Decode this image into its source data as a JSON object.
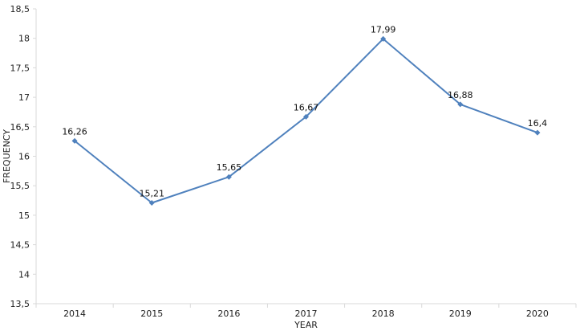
{
  "chart_data": {
    "type": "line",
    "title": "",
    "xlabel": "YEAR",
    "ylabel": "FREQUENCY",
    "categories": [
      "2014",
      "2015",
      "2016",
      "2017",
      "2018",
      "2019",
      "2020"
    ],
    "series": [
      {
        "values": [
          16.26,
          15.21,
          15.65,
          16.67,
          17.99,
          16.88,
          16.4
        ],
        "color": "#4f81bd"
      }
    ],
    "data_labels": [
      "16,26",
      "15,21",
      "15,65",
      "16,67",
      "17,99",
      "16,88",
      "16,4"
    ],
    "ylim": [
      13.5,
      18.5
    ],
    "y_ticks": [
      13.5,
      14,
      14.5,
      15,
      15.5,
      16,
      16.5,
      17,
      17.5,
      18,
      18.5
    ],
    "y_tick_labels": [
      "13,5",
      "14",
      "14,5",
      "15",
      "15,5",
      "16",
      "16,5",
      "17",
      "17,5",
      "18",
      "18,5"
    ],
    "grid": false,
    "marker": "diamond",
    "axis_color": "#d9d9d9"
  }
}
